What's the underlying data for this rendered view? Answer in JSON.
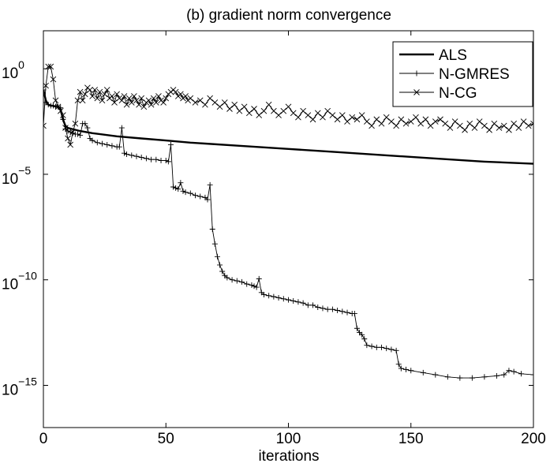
{
  "chart_data": {
    "type": "line",
    "title": "(b) gradient norm convergence",
    "xlabel": "iterations",
    "ylabel": "",
    "xlim": [
      0,
      200
    ],
    "ylim_exponent": [
      -17,
      1.8
    ],
    "yscale": "log",
    "grid": false,
    "legend_position": "top-right",
    "x_ticks": [
      0,
      50,
      100,
      150,
      200
    ],
    "y_ticks": [
      {
        "exponent": 0,
        "base": "10",
        "sup": "0"
      },
      {
        "exponent": -5,
        "base": "10",
        "sup": "−5"
      },
      {
        "exponent": -10,
        "base": "10",
        "sup": "−10"
      },
      {
        "exponent": -15,
        "base": "10",
        "sup": "−15"
      }
    ],
    "series": [
      {
        "name": "ALS",
        "marker": "none",
        "style": "thick",
        "points_log10": [
          [
            0,
            -1.0
          ],
          [
            1,
            -1.5
          ],
          [
            2,
            -1.7
          ],
          [
            3,
            -1.75
          ],
          [
            4,
            -1.75
          ],
          [
            5,
            -1.8
          ],
          [
            6,
            -1.8
          ],
          [
            7,
            -1.9
          ],
          [
            8,
            -2.4
          ],
          [
            9,
            -2.7
          ],
          [
            10,
            -2.8
          ],
          [
            15,
            -2.95
          ],
          [
            20,
            -3.05
          ],
          [
            30,
            -3.2
          ],
          [
            40,
            -3.3
          ],
          [
            50,
            -3.4
          ],
          [
            60,
            -3.5
          ],
          [
            80,
            -3.65
          ],
          [
            100,
            -3.8
          ],
          [
            120,
            -3.95
          ],
          [
            140,
            -4.1
          ],
          [
            160,
            -4.25
          ],
          [
            180,
            -4.4
          ],
          [
            200,
            -4.5
          ]
        ]
      },
      {
        "name": "N-GMRES",
        "marker": "plus",
        "style": "thin",
        "points_log10": [
          [
            0,
            -1.0
          ],
          [
            1,
            -1.6
          ],
          [
            2,
            -1.7
          ],
          [
            3,
            -1.75
          ],
          [
            4,
            -1.75
          ],
          [
            5,
            -1.8
          ],
          [
            6,
            -1.8
          ],
          [
            7,
            -1.85
          ],
          [
            8,
            -2.4
          ],
          [
            9,
            -2.85
          ],
          [
            10,
            -2.95
          ],
          [
            11,
            -3.0
          ],
          [
            12,
            -3.05
          ],
          [
            13,
            -3.1
          ],
          [
            14,
            -3.1
          ],
          [
            15,
            -3.15
          ],
          [
            16,
            -2.6
          ],
          [
            17,
            -2.6
          ],
          [
            18,
            -2.8
          ],
          [
            19,
            -3.3
          ],
          [
            20,
            -3.4
          ],
          [
            22,
            -3.5
          ],
          [
            24,
            -3.55
          ],
          [
            26,
            -3.6
          ],
          [
            28,
            -3.65
          ],
          [
            30,
            -3.7
          ],
          [
            31,
            -3.7
          ],
          [
            32,
            -2.8
          ],
          [
            33,
            -4.0
          ],
          [
            34,
            -4.05
          ],
          [
            36,
            -4.1
          ],
          [
            38,
            -4.15
          ],
          [
            40,
            -4.2
          ],
          [
            42,
            -4.25
          ],
          [
            44,
            -4.3
          ],
          [
            46,
            -4.3
          ],
          [
            48,
            -4.35
          ],
          [
            50,
            -4.35
          ],
          [
            51,
            -4.4
          ],
          [
            52,
            -3.6
          ],
          [
            53,
            -5.6
          ],
          [
            54,
            -5.65
          ],
          [
            55,
            -5.7
          ],
          [
            56,
            -5.4
          ],
          [
            57,
            -5.8
          ],
          [
            58,
            -5.85
          ],
          [
            60,
            -5.9
          ],
          [
            62,
            -6.0
          ],
          [
            64,
            -6.05
          ],
          [
            66,
            -6.1
          ],
          [
            67,
            -6.2
          ],
          [
            68,
            -5.5
          ],
          [
            69,
            -7.6
          ],
          [
            70,
            -8.3
          ],
          [
            71,
            -8.9
          ],
          [
            72,
            -9.3
          ],
          [
            73,
            -9.6
          ],
          [
            74,
            -9.8
          ],
          [
            75,
            -9.9
          ],
          [
            77,
            -10.0
          ],
          [
            79,
            -10.05
          ],
          [
            81,
            -10.1
          ],
          [
            83,
            -10.2
          ],
          [
            85,
            -10.25
          ],
          [
            86,
            -10.3
          ],
          [
            87,
            -10.35
          ],
          [
            88,
            -9.95
          ],
          [
            89,
            -10.6
          ],
          [
            90,
            -10.7
          ],
          [
            92,
            -10.75
          ],
          [
            94,
            -10.8
          ],
          [
            96,
            -10.85
          ],
          [
            98,
            -10.9
          ],
          [
            100,
            -10.95
          ],
          [
            102,
            -11.0
          ],
          [
            104,
            -11.05
          ],
          [
            106,
            -11.1
          ],
          [
            108,
            -11.2
          ],
          [
            110,
            -11.2
          ],
          [
            112,
            -11.3
          ],
          [
            114,
            -11.35
          ],
          [
            116,
            -11.4
          ],
          [
            118,
            -11.4
          ],
          [
            120,
            -11.45
          ],
          [
            122,
            -11.5
          ],
          [
            124,
            -11.55
          ],
          [
            126,
            -11.6
          ],
          [
            127,
            -11.6
          ],
          [
            128,
            -12.3
          ],
          [
            129,
            -12.5
          ],
          [
            130,
            -12.6
          ],
          [
            131,
            -12.8
          ],
          [
            132,
            -13.1
          ],
          [
            134,
            -13.15
          ],
          [
            136,
            -13.2
          ],
          [
            138,
            -13.2
          ],
          [
            140,
            -13.25
          ],
          [
            142,
            -13.3
          ],
          [
            144,
            -13.35
          ],
          [
            145,
            -14.0
          ],
          [
            146,
            -14.2
          ],
          [
            148,
            -14.25
          ],
          [
            150,
            -14.3
          ],
          [
            155,
            -14.4
          ],
          [
            160,
            -14.5
          ],
          [
            165,
            -14.6
          ],
          [
            170,
            -14.65
          ],
          [
            175,
            -14.65
          ],
          [
            180,
            -14.6
          ],
          [
            185,
            -14.55
          ],
          [
            188,
            -14.5
          ],
          [
            190,
            -14.3
          ],
          [
            192,
            -14.35
          ],
          [
            195,
            -14.45
          ],
          [
            200,
            -14.5
          ]
        ]
      },
      {
        "name": "N-CG",
        "marker": "x",
        "style": "thin",
        "points_log10": [
          [
            0,
            -2.7
          ],
          [
            1,
            -0.8
          ],
          [
            2,
            0.1
          ],
          [
            3,
            0.1
          ],
          [
            4,
            -0.5
          ],
          [
            5,
            -1.5
          ],
          [
            6,
            -1.8
          ],
          [
            7,
            -2.0
          ],
          [
            8,
            -2.2
          ],
          [
            9,
            -2.8
          ],
          [
            10,
            -3.3
          ],
          [
            11,
            -3.6
          ],
          [
            12,
            -3.0
          ],
          [
            13,
            -2.6
          ],
          [
            14,
            -1.5
          ],
          [
            15,
            -1.1
          ],
          [
            16,
            -1.5
          ],
          [
            17,
            -1.2
          ],
          [
            18,
            -0.9
          ],
          [
            19,
            -1.0
          ],
          [
            20,
            -1.3
          ],
          [
            21,
            -1.0
          ],
          [
            22,
            -1.4
          ],
          [
            23,
            -1.1
          ],
          [
            24,
            -1.5
          ],
          [
            25,
            -1.2
          ],
          [
            26,
            -1.0
          ],
          [
            27,
            -1.4
          ],
          [
            28,
            -1.3
          ],
          [
            29,
            -1.6
          ],
          [
            30,
            -1.2
          ],
          [
            31,
            -1.4
          ],
          [
            32,
            -1.5
          ],
          [
            33,
            -1.3
          ],
          [
            34,
            -1.7
          ],
          [
            35,
            -1.4
          ],
          [
            36,
            -1.6
          ],
          [
            37,
            -1.3
          ],
          [
            38,
            -1.5
          ],
          [
            39,
            -1.7
          ],
          [
            40,
            -1.4
          ],
          [
            41,
            -1.8
          ],
          [
            42,
            -1.6
          ],
          [
            43,
            -1.5
          ],
          [
            44,
            -1.7
          ],
          [
            45,
            -1.4
          ],
          [
            46,
            -1.6
          ],
          [
            47,
            -1.3
          ],
          [
            48,
            -1.5
          ],
          [
            49,
            -1.6
          ],
          [
            50,
            -1.4
          ],
          [
            51,
            -1.2
          ],
          [
            52,
            -1.1
          ],
          [
            53,
            -1.0
          ],
          [
            54,
            -1.1
          ],
          [
            55,
            -1.3
          ],
          [
            56,
            -1.2
          ],
          [
            57,
            -1.4
          ],
          [
            58,
            -1.3
          ],
          [
            59,
            -1.5
          ],
          [
            60,
            -1.4
          ],
          [
            62,
            -1.6
          ],
          [
            64,
            -1.5
          ],
          [
            66,
            -1.7
          ],
          [
            68,
            -1.4
          ],
          [
            70,
            -1.6
          ],
          [
            72,
            -1.8
          ],
          [
            74,
            -1.6
          ],
          [
            76,
            -1.9
          ],
          [
            78,
            -1.7
          ],
          [
            80,
            -2.0
          ],
          [
            82,
            -1.8
          ],
          [
            84,
            -2.1
          ],
          [
            86,
            -1.9
          ],
          [
            88,
            -2.2
          ],
          [
            90,
            -2.0
          ],
          [
            92,
            -1.7
          ],
          [
            94,
            -2.0
          ],
          [
            96,
            -2.2
          ],
          [
            98,
            -2.0
          ],
          [
            100,
            -1.8
          ],
          [
            102,
            -2.1
          ],
          [
            104,
            -2.3
          ],
          [
            106,
            -2.0
          ],
          [
            108,
            -2.2
          ],
          [
            110,
            -2.4
          ],
          [
            112,
            -2.1
          ],
          [
            114,
            -2.3
          ],
          [
            116,
            -2.0
          ],
          [
            118,
            -2.2
          ],
          [
            120,
            -2.4
          ],
          [
            122,
            -2.2
          ],
          [
            124,
            -2.5
          ],
          [
            126,
            -2.3
          ],
          [
            128,
            -2.4
          ],
          [
            130,
            -2.2
          ],
          [
            132,
            -2.5
          ],
          [
            134,
            -2.7
          ],
          [
            136,
            -2.4
          ],
          [
            138,
            -2.6
          ],
          [
            140,
            -2.3
          ],
          [
            142,
            -2.5
          ],
          [
            144,
            -2.7
          ],
          [
            146,
            -2.4
          ],
          [
            148,
            -2.6
          ],
          [
            150,
            -2.5
          ],
          [
            152,
            -2.3
          ],
          [
            154,
            -2.6
          ],
          [
            156,
            -2.4
          ],
          [
            158,
            -2.7
          ],
          [
            160,
            -2.5
          ],
          [
            162,
            -2.4
          ],
          [
            164,
            -2.6
          ],
          [
            166,
            -2.8
          ],
          [
            168,
            -2.5
          ],
          [
            170,
            -2.7
          ],
          [
            172,
            -2.9
          ],
          [
            174,
            -2.6
          ],
          [
            176,
            -2.8
          ],
          [
            178,
            -2.5
          ],
          [
            180,
            -2.7
          ],
          [
            182,
            -2.9
          ],
          [
            184,
            -2.6
          ],
          [
            186,
            -2.8
          ],
          [
            188,
            -2.7
          ],
          [
            190,
            -2.9
          ],
          [
            192,
            -2.6
          ],
          [
            194,
            -2.8
          ],
          [
            196,
            -2.5
          ],
          [
            198,
            -2.7
          ],
          [
            200,
            -2.6
          ]
        ]
      }
    ]
  }
}
